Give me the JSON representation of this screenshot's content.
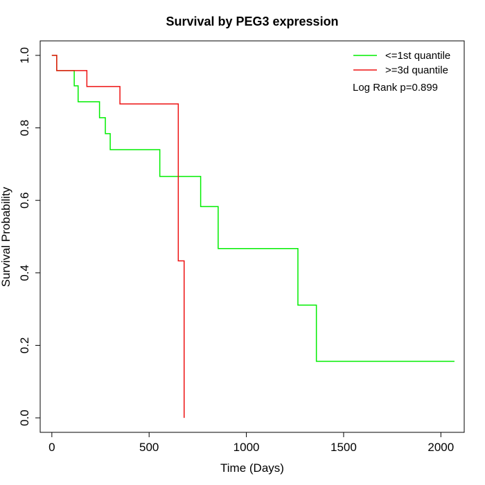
{
  "chart_data": {
    "type": "line",
    "step": true,
    "title": "Survival by PEG3 expression",
    "xlabel": "Time (Days)",
    "ylabel": "Survival Probability",
    "xlim": [
      -60,
      2120
    ],
    "ylim": [
      -0.04,
      1.04
    ],
    "x_ticks": [
      0,
      500,
      1000,
      1500,
      2000
    ],
    "y_ticks": [
      0.0,
      0.2,
      0.4,
      0.6,
      0.8,
      1.0
    ],
    "x_tick_labels": [
      "0",
      "500",
      "1000",
      "1500",
      "2000"
    ],
    "y_tick_labels": [
      "0.0",
      "0.2",
      "0.4",
      "0.6",
      "0.8",
      "1.0"
    ],
    "grid": false,
    "legend_position": "top-right",
    "annotation": "Log Rank p=0.899",
    "series": [
      {
        "name": "<=1st quantile",
        "color": "#00ee00",
        "x": [
          0,
          25,
          115,
          135,
          245,
          275,
          300,
          555,
          765,
          855,
          1265,
          1360,
          2070
        ],
        "y": [
          1.0,
          0.958,
          0.916,
          0.872,
          0.828,
          0.784,
          0.74,
          0.666,
          0.583,
          0.467,
          0.311,
          0.156,
          0.156
        ]
      },
      {
        "name": ">=3d quantile",
        "color": "#ee1111",
        "x": [
          0,
          25,
          180,
          350,
          650,
          680,
          680
        ],
        "y": [
          1.0,
          0.958,
          0.914,
          0.866,
          0.433,
          0.433,
          0.0
        ]
      }
    ]
  }
}
